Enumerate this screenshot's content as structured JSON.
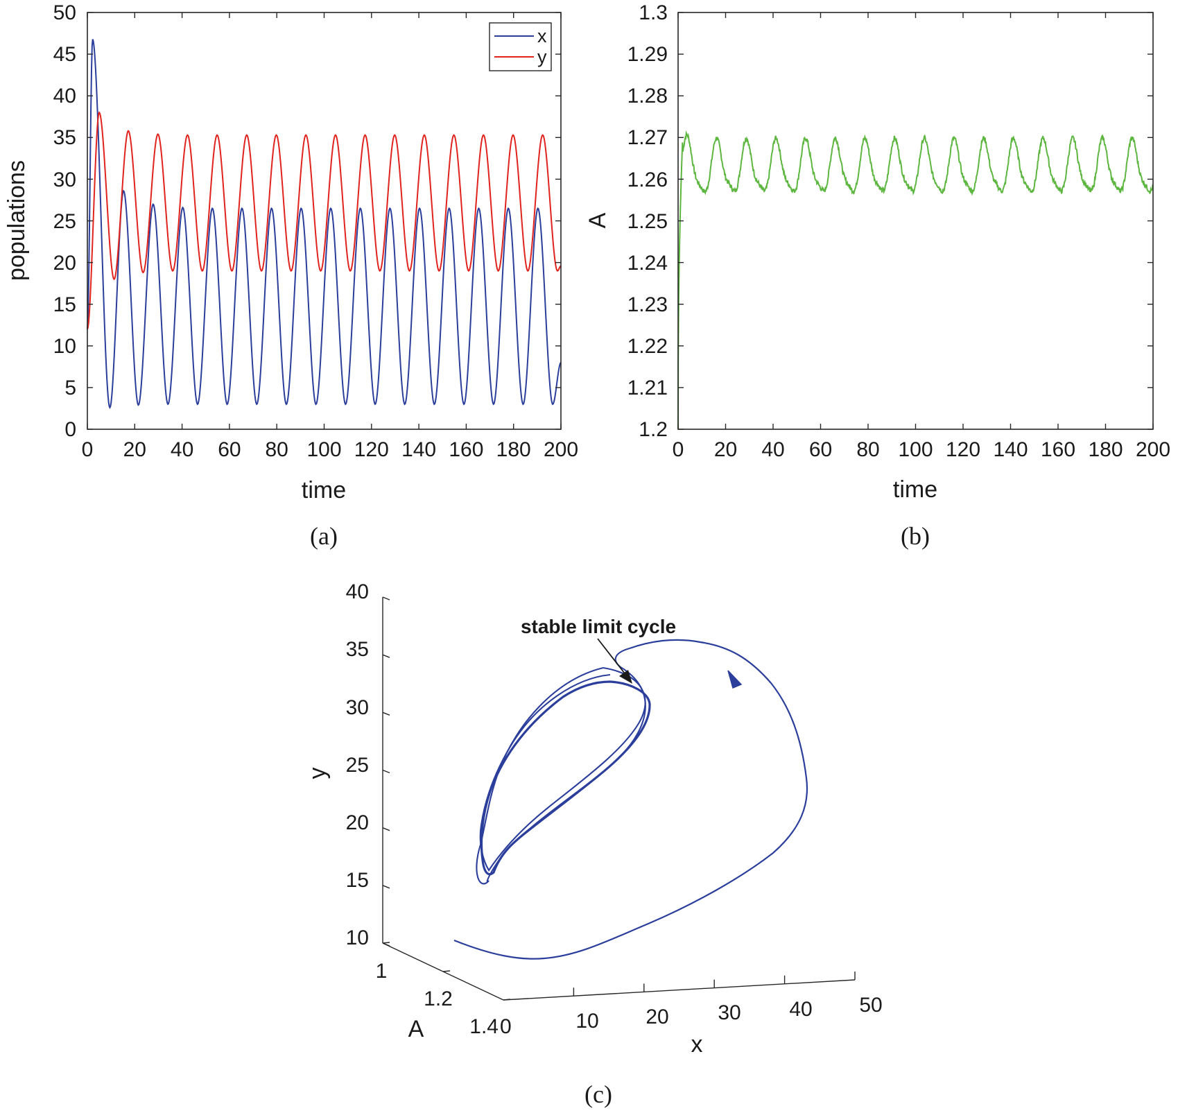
{
  "chart_data": [
    {
      "panel": "a",
      "type": "line",
      "caption": "(a)",
      "xlabel": "time",
      "ylabel": "populations",
      "xlim": [
        0,
        200
      ],
      "ylim": [
        0,
        50
      ],
      "xticks": [
        0,
        20,
        40,
        60,
        80,
        100,
        120,
        140,
        160,
        180,
        200
      ],
      "yticks": [
        0,
        5,
        10,
        15,
        20,
        25,
        30,
        35,
        40,
        45,
        50
      ],
      "xticklabels": [
        "0",
        "20",
        "40",
        "60",
        "80",
        "100",
        "120",
        "140",
        "160",
        "180",
        "200"
      ],
      "yticklabels": [
        "0",
        "5",
        "10",
        "15",
        "20",
        "25",
        "30",
        "35",
        "40",
        "45",
        "50"
      ],
      "legend": {
        "position": "top-right",
        "entries": [
          "x",
          "y"
        ]
      },
      "series": [
        {
          "name": "x",
          "color": "#2b3e9b",
          "initial": 12,
          "first_peak": {
            "t": 2.2,
            "value": 46.8
          },
          "first_trough": {
            "t": 9.5,
            "value": 2.6
          },
          "peak_times": [
            15.3,
            27.8,
            40.3,
            52.8,
            65.3,
            77.8,
            90.3,
            102.8,
            115.3,
            127.8,
            140.3,
            152.8,
            165.3,
            177.8,
            190.3
          ],
          "peak_values": [
            28.6,
            27.0,
            26.6,
            26.5,
            26.5,
            26.5,
            26.5,
            26.5,
            26.5,
            26.5,
            26.5,
            26.5,
            26.5,
            26.5,
            26.5
          ],
          "trough_values": [
            2.9,
            3.0,
            3.0,
            3.0,
            3.0,
            3.0,
            3.0,
            3.0,
            3.0,
            3.0,
            3.0,
            3.0,
            3.0,
            3.0,
            3.0
          ],
          "final": {
            "t": 200,
            "value": 8.0
          }
        },
        {
          "name": "y",
          "color": "#e0231d",
          "initial": 12,
          "first_peak": {
            "t": 5.0,
            "value": 38.0
          },
          "first_trough": {
            "t": 11.3,
            "value": 18.0
          },
          "peak_times": [
            17.3,
            29.8,
            42.3,
            54.8,
            67.3,
            79.8,
            92.3,
            104.8,
            117.3,
            129.8,
            142.3,
            154.8,
            167.3,
            179.8,
            192.3
          ],
          "peak_values": [
            35.8,
            35.4,
            35.3,
            35.3,
            35.3,
            35.3,
            35.3,
            35.3,
            35.3,
            35.3,
            35.3,
            35.3,
            35.3,
            35.3,
            35.3
          ],
          "trough_values": [
            18.8,
            19.0,
            19.0,
            19.0,
            19.0,
            19.0,
            19.0,
            19.0,
            19.0,
            19.0,
            19.0,
            19.0,
            19.0,
            19.0,
            19.0
          ],
          "final": {
            "t": 200,
            "value": 19.6
          }
        }
      ]
    },
    {
      "panel": "b",
      "type": "line",
      "caption": "(b)",
      "xlabel": "time",
      "ylabel": "A",
      "xlim": [
        0,
        200
      ],
      "ylim": [
        1.2,
        1.3
      ],
      "xticks": [
        0,
        20,
        40,
        60,
        80,
        100,
        120,
        140,
        160,
        180,
        200
      ],
      "yticks": [
        1.2,
        1.21,
        1.22,
        1.23,
        1.24,
        1.25,
        1.26,
        1.27,
        1.28,
        1.29,
        1.3
      ],
      "xticklabels": [
        "0",
        "20",
        "40",
        "60",
        "80",
        "100",
        "120",
        "140",
        "160",
        "180",
        "200"
      ],
      "yticklabels": [
        "1.2",
        "1.21",
        "1.22",
        "1.23",
        "1.24",
        "1.25",
        "1.26",
        "1.27",
        "1.28",
        "1.29",
        "1.3"
      ],
      "series": [
        {
          "name": "A",
          "color": "#5db640",
          "initial": 1.2,
          "mean": 1.2625,
          "amplitude": 0.0075,
          "period": 12.5,
          "first_peak": {
            "t": 4.0,
            "value": 1.271
          },
          "first_trough": {
            "t": 11.0,
            "value": 1.254
          },
          "final": {
            "t": 200,
            "value": 1.258
          }
        }
      ]
    },
    {
      "panel": "c",
      "type": "line3d",
      "caption": "(c)",
      "xlabel": "x",
      "ylabel": "A",
      "zlabel": "y",
      "xlim": [
        0,
        50
      ],
      "ylim": [
        1,
        1.4
      ],
      "zlim": [
        10,
        40
      ],
      "xticks": [
        10,
        20,
        30,
        40,
        50
      ],
      "xticklabels": [
        "10",
        "20",
        "30",
        "40",
        "50"
      ],
      "yticks": [
        1,
        1.2,
        1.4
      ],
      "yticklabels": [
        "1",
        "1.2",
        "1.4"
      ],
      "zticks": [
        10,
        15,
        20,
        25,
        30,
        35,
        40
      ],
      "zticklabels": [
        "10",
        "15",
        "20",
        "25",
        "30",
        "35",
        "40"
      ],
      "origin_label": "0",
      "annotation": "stable limit cycle",
      "series": [
        {
          "name": "trajectory",
          "color": "#2b3e9b",
          "start": {
            "x": 12,
            "A": 1.2,
            "y": 12
          },
          "transient_max_x": 46.8,
          "transient_max_y": 38.0
        },
        {
          "name": "limit cycle",
          "color": "#2b3e9b",
          "x_range": [
            3.0,
            26.5
          ],
          "y_range": [
            19.0,
            35.3
          ]
        }
      ]
    }
  ]
}
